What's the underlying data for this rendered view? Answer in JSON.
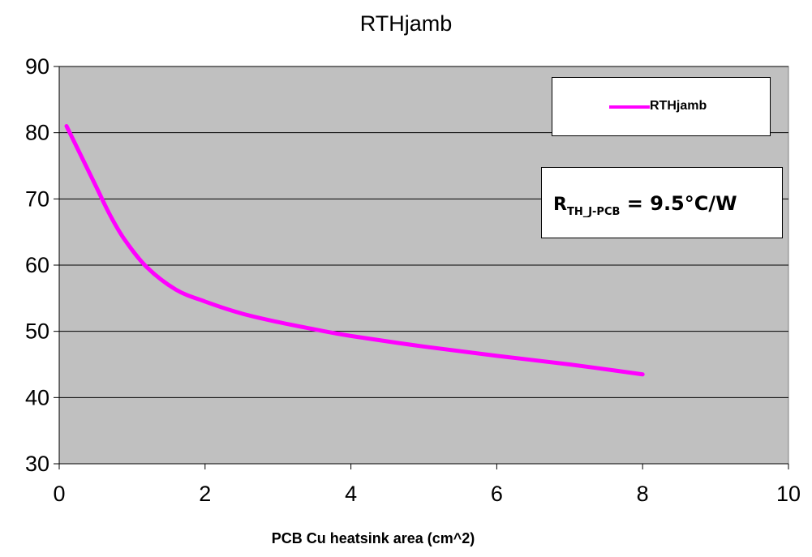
{
  "chart_data": {
    "type": "line",
    "title": "RTHjamb",
    "xlabel": "PCB Cu heatsink area (cm^2)",
    "ylabel": "",
    "xlim": [
      0,
      10
    ],
    "ylim": [
      30,
      90
    ],
    "xticks": [
      0,
      2,
      4,
      6,
      8,
      10
    ],
    "yticks": [
      30,
      40,
      50,
      60,
      70,
      80,
      90
    ],
    "grid": "horizontal",
    "background": "#c0c0c0",
    "legend_position": "top-right",
    "series": [
      {
        "name": "RTHjamb",
        "color": "#ff00ff",
        "x": [
          0.1,
          0.3,
          0.5,
          0.7,
          0.9,
          1.2,
          1.6,
          2.0,
          2.5,
          3.0,
          3.5,
          4.0,
          5.0,
          6.0,
          7.0,
          8.0
        ],
        "y": [
          81,
          76.5,
          72,
          67.5,
          63.8,
          59.7,
          56.3,
          54.5,
          52.7,
          51.4,
          50.3,
          49.3,
          47.7,
          46.3,
          45.0,
          43.5
        ]
      }
    ],
    "annotation": {
      "base": "R",
      "subscript": "TH_J-PCB",
      "rest": " = 9.5°C/W"
    }
  }
}
